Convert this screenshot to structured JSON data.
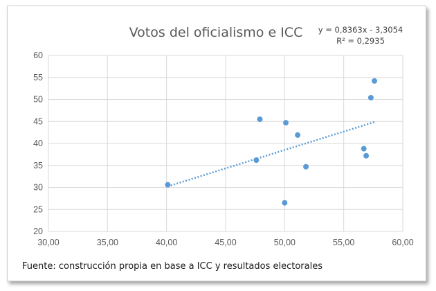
{
  "chart_data": {
    "type": "scatter",
    "title": "Votos del oficialismo e ICC",
    "xlim": [
      30,
      60
    ],
    "ylim": [
      20,
      60
    ],
    "x_ticks": [
      "30,00",
      "35,00",
      "40,00",
      "45,00",
      "50,00",
      "55,00",
      "60,00"
    ],
    "y_ticks": [
      "20",
      "25",
      "30",
      "35",
      "40",
      "45",
      "50",
      "55",
      "60"
    ],
    "grid": true,
    "points": [
      {
        "x": 40.1,
        "y": 30.6
      },
      {
        "x": 47.6,
        "y": 36.2
      },
      {
        "x": 47.9,
        "y": 45.5
      },
      {
        "x": 50.0,
        "y": 26.5
      },
      {
        "x": 50.1,
        "y": 44.7
      },
      {
        "x": 51.1,
        "y": 41.9
      },
      {
        "x": 51.8,
        "y": 34.7
      },
      {
        "x": 56.7,
        "y": 38.8
      },
      {
        "x": 56.9,
        "y": 37.2
      },
      {
        "x": 57.3,
        "y": 50.4
      },
      {
        "x": 57.6,
        "y": 54.2
      }
    ],
    "trendline": {
      "type": "linear",
      "slope": 0.8363,
      "intercept": -3.3054,
      "x_range": [
        40.1,
        57.6
      ],
      "equation_label": "y = 0,8363x - 3,3054",
      "r2_label": "R² = 0,2935"
    },
    "colors": {
      "point": "#5b9bd5",
      "grid": "#d9d9d9",
      "text": "#595959"
    }
  },
  "source_note": "Fuente: construcción propia en base a ICC y resultados electorales"
}
